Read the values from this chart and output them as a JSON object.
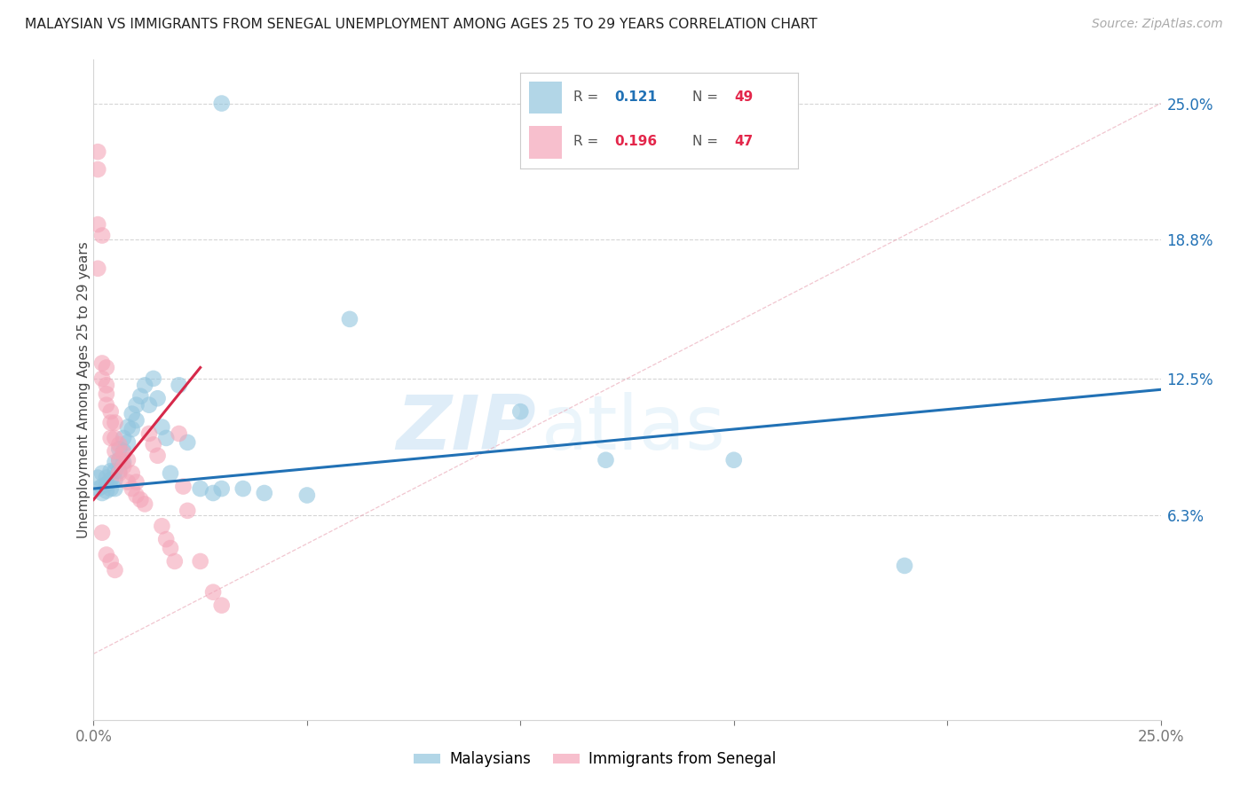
{
  "title": "MALAYSIAN VS IMMIGRANTS FROM SENEGAL UNEMPLOYMENT AMONG AGES 25 TO 29 YEARS CORRELATION CHART",
  "source": "Source: ZipAtlas.com",
  "ylabel": "Unemployment Among Ages 25 to 29 years",
  "watermark": "ZIPatlas",
  "blue_color": "#92c5de",
  "pink_color": "#f4a5b8",
  "blue_line_color": "#2171b5",
  "pink_line_color": "#d6294a",
  "diag_line_color": "#e8a0b0",
  "legend_r_blue": "0.121",
  "legend_n_blue": "49",
  "legend_r_pink": "0.196",
  "legend_n_pink": "47",
  "blue_x": [
    0.001,
    0.001,
    0.002,
    0.002,
    0.002,
    0.003,
    0.003,
    0.003,
    0.004,
    0.004,
    0.004,
    0.005,
    0.005,
    0.005,
    0.005,
    0.006,
    0.006,
    0.006,
    0.007,
    0.007,
    0.007,
    0.008,
    0.008,
    0.009,
    0.009,
    0.01,
    0.01,
    0.011,
    0.012,
    0.013,
    0.014,
    0.015,
    0.016,
    0.017,
    0.018,
    0.02,
    0.022,
    0.025,
    0.028,
    0.03,
    0.035,
    0.04,
    0.05,
    0.06,
    0.1,
    0.12,
    0.15,
    0.19,
    0.03
  ],
  "blue_y": [
    0.08,
    0.075,
    0.082,
    0.076,
    0.073,
    0.08,
    0.077,
    0.074,
    0.083,
    0.079,
    0.075,
    0.087,
    0.083,
    0.079,
    0.075,
    0.093,
    0.088,
    0.083,
    0.098,
    0.092,
    0.087,
    0.103,
    0.096,
    0.109,
    0.102,
    0.113,
    0.106,
    0.117,
    0.122,
    0.113,
    0.125,
    0.116,
    0.103,
    0.098,
    0.082,
    0.122,
    0.096,
    0.075,
    0.073,
    0.075,
    0.075,
    0.073,
    0.072,
    0.152,
    0.11,
    0.088,
    0.088,
    0.04,
    0.25
  ],
  "pink_x": [
    0.001,
    0.001,
    0.001,
    0.001,
    0.002,
    0.002,
    0.002,
    0.002,
    0.003,
    0.003,
    0.003,
    0.003,
    0.003,
    0.004,
    0.004,
    0.004,
    0.004,
    0.005,
    0.005,
    0.005,
    0.005,
    0.006,
    0.006,
    0.006,
    0.007,
    0.007,
    0.008,
    0.008,
    0.009,
    0.009,
    0.01,
    0.01,
    0.011,
    0.012,
    0.013,
    0.014,
    0.015,
    0.016,
    0.017,
    0.018,
    0.019,
    0.02,
    0.021,
    0.022,
    0.025,
    0.028,
    0.03
  ],
  "pink_y": [
    0.228,
    0.22,
    0.195,
    0.175,
    0.19,
    0.132,
    0.125,
    0.055,
    0.13,
    0.122,
    0.118,
    0.113,
    0.045,
    0.11,
    0.105,
    0.098,
    0.042,
    0.105,
    0.098,
    0.092,
    0.038,
    0.095,
    0.088,
    0.082,
    0.091,
    0.085,
    0.088,
    0.078,
    0.082,
    0.075,
    0.078,
    0.072,
    0.07,
    0.068,
    0.1,
    0.095,
    0.09,
    0.058,
    0.052,
    0.048,
    0.042,
    0.1,
    0.076,
    0.065,
    0.042,
    0.028,
    0.022
  ],
  "xlim": [
    0.0,
    0.25
  ],
  "ylim": [
    -0.03,
    0.27
  ],
  "yticks": [
    0.063,
    0.125,
    0.188,
    0.25
  ],
  "ytick_labels": [
    "6.3%",
    "12.5%",
    "18.8%",
    "25.0%"
  ],
  "grid_color": "#d5d5d5"
}
